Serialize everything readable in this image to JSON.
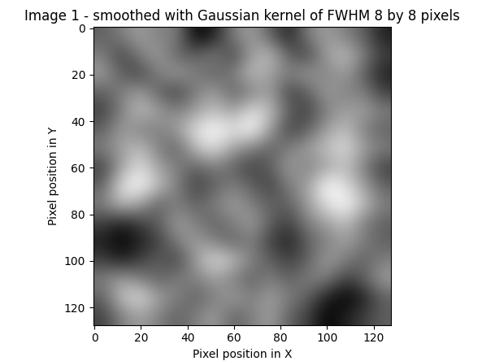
{
  "chart_data": {
    "type": "heatmap",
    "title": "Image 1 - smoothed with Gaussian kernel of FWHM 8 by 8 pixels",
    "x_label": "Pixel position in X",
    "y_label": "Pixel position in Y",
    "color": "gray",
    "xlim": [
      -0.5,
      127.5
    ],
    "ylim": [
      127.5,
      -0.5
    ],
    "xticks": [
      0,
      20,
      40,
      60,
      80,
      100,
      120
    ],
    "yticks": [
      0,
      20,
      40,
      60,
      80,
      100,
      120
    ],
    "cells": [
      [
        0.4,
        0.5,
        0.6,
        0.5,
        0.5,
        0.1,
        0.2,
        0.5,
        0.6,
        0.4,
        0.2,
        0.5,
        0.6,
        0.5,
        0.4,
        0.2
      ],
      [
        0.5,
        0.3,
        0.5,
        0.6,
        0.4,
        0.4,
        0.5,
        0.3,
        0.6,
        0.7,
        0.4,
        0.3,
        0.6,
        0.7,
        0.5,
        0.3
      ],
      [
        0.6,
        0.4,
        0.3,
        0.5,
        0.6,
        0.5,
        0.4,
        0.5,
        0.7,
        0.6,
        0.5,
        0.6,
        0.5,
        0.6,
        0.4,
        0.2
      ],
      [
        0.4,
        0.5,
        0.6,
        0.4,
        0.3,
        0.5,
        0.6,
        0.4,
        0.5,
        0.6,
        0.3,
        0.4,
        0.6,
        0.5,
        0.5,
        0.3
      ],
      [
        0.3,
        0.5,
        0.7,
        0.6,
        0.5,
        0.6,
        0.7,
        0.6,
        0.8,
        0.7,
        0.4,
        0.3,
        0.5,
        0.6,
        0.6,
        0.5
      ],
      [
        0.4,
        0.6,
        0.5,
        0.5,
        0.6,
        0.8,
        0.9,
        0.8,
        0.9,
        0.6,
        0.3,
        0.4,
        0.6,
        0.7,
        0.5,
        0.4
      ],
      [
        0.5,
        0.6,
        0.7,
        0.5,
        0.4,
        0.7,
        0.8,
        0.6,
        0.5,
        0.4,
        0.5,
        0.6,
        0.7,
        0.8,
        0.6,
        0.5
      ],
      [
        0.3,
        0.6,
        0.8,
        0.6,
        0.5,
        0.4,
        0.5,
        0.4,
        0.3,
        0.4,
        0.6,
        0.5,
        0.6,
        0.7,
        0.5,
        0.3
      ],
      [
        0.4,
        0.8,
        0.9,
        0.7,
        0.5,
        0.3,
        0.4,
        0.5,
        0.4,
        0.3,
        0.5,
        0.6,
        0.9,
        0.8,
        0.6,
        0.4
      ],
      [
        0.5,
        0.7,
        0.6,
        0.4,
        0.5,
        0.4,
        0.5,
        0.6,
        0.5,
        0.4,
        0.4,
        0.6,
        0.8,
        0.9,
        0.7,
        0.5
      ],
      [
        0.3,
        0.2,
        0.3,
        0.4,
        0.6,
        0.5,
        0.4,
        0.5,
        0.6,
        0.4,
        0.3,
        0.5,
        0.6,
        0.7,
        0.5,
        0.4
      ],
      [
        0.2,
        0.1,
        0.2,
        0.3,
        0.5,
        0.6,
        0.5,
        0.4,
        0.5,
        0.3,
        0.2,
        0.4,
        0.5,
        0.6,
        0.5,
        0.4
      ],
      [
        0.3,
        0.2,
        0.3,
        0.4,
        0.3,
        0.6,
        0.8,
        0.7,
        0.5,
        0.4,
        0.3,
        0.4,
        0.6,
        0.5,
        0.4,
        0.5
      ],
      [
        0.5,
        0.6,
        0.5,
        0.4,
        0.5,
        0.5,
        0.6,
        0.5,
        0.4,
        0.5,
        0.4,
        0.5,
        0.5,
        0.3,
        0.4,
        0.6
      ],
      [
        0.4,
        0.7,
        0.8,
        0.6,
        0.5,
        0.4,
        0.5,
        0.6,
        0.5,
        0.6,
        0.5,
        0.4,
        0.2,
        0.1,
        0.2,
        0.4
      ],
      [
        0.3,
        0.5,
        0.6,
        0.5,
        0.4,
        0.5,
        0.6,
        0.4,
        0.5,
        0.6,
        0.4,
        0.3,
        0.1,
        0.2,
        0.3,
        0.4
      ]
    ]
  }
}
